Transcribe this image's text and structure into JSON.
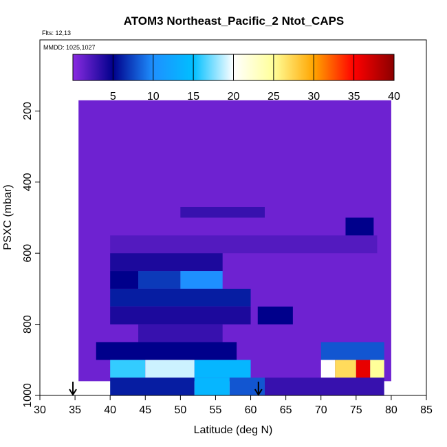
{
  "chart_data": {
    "type": "heatmap",
    "title": "ATOM3 Northeast_Pacific_2 Ntot_CAPS",
    "flights_note": "Flts: 12,13",
    "date_note": "MMDD: 1025,1027",
    "xlabel": "Latitude (deg N)",
    "ylabel": "PSXC (mbar)",
    "xlim": [
      30,
      85
    ],
    "ylim": [
      1000,
      0
    ],
    "x_ticks": [
      30,
      35,
      40,
      45,
      50,
      55,
      60,
      65,
      70,
      75,
      80,
      85
    ],
    "y_ticks": [
      200,
      400,
      600,
      800,
      1000
    ],
    "colorbar": {
      "range": [
        0,
        40
      ],
      "ticks": [
        5,
        10,
        15,
        20,
        25,
        30,
        35,
        40
      ],
      "colors": [
        "#8a2be2",
        "#00008b",
        "#1e90ff",
        "#00bfff",
        "#ffffff",
        "#ffff99",
        "#ffa500",
        "#ff0000",
        "#8b0000"
      ]
    },
    "background_value": 1,
    "bands": [
      {
        "p": [
          170,
          960
        ],
        "lat": [
          35.5,
          80.0
        ],
        "value": 1
      },
      {
        "p": [
          550,
          600
        ],
        "lat": [
          40.0,
          78.0
        ],
        "value": 2
      },
      {
        "p": [
          500,
          550
        ],
        "lat": [
          73.5,
          77.5
        ],
        "value": 5
      },
      {
        "p": [
          470,
          500
        ],
        "lat": [
          50.0,
          62.0
        ],
        "value": 3
      },
      {
        "p": [
          600,
          650
        ],
        "lat": [
          40.0,
          56.0
        ],
        "value": 4
      },
      {
        "p": [
          650,
          700
        ],
        "lat": [
          40.0,
          44.0
        ],
        "value": 5
      },
      {
        "p": [
          650,
          700
        ],
        "lat": [
          44.0,
          50.0
        ],
        "value": 7
      },
      {
        "p": [
          650,
          700
        ],
        "lat": [
          50.0,
          56.0
        ],
        "value": 10
      },
      {
        "p": [
          700,
          750
        ],
        "lat": [
          40.0,
          60.0
        ],
        "value": 6
      },
      {
        "p": [
          750,
          800
        ],
        "lat": [
          40.0,
          60.0
        ],
        "value": 4
      },
      {
        "p": [
          750,
          800
        ],
        "lat": [
          61.0,
          66.0
        ],
        "value": 5
      },
      {
        "p": [
          800,
          850
        ],
        "lat": [
          44.0,
          56.0
        ],
        "value": 3
      },
      {
        "p": [
          850,
          900
        ],
        "lat": [
          38.0,
          58.0
        ],
        "value": 5
      },
      {
        "p": [
          850,
          900
        ],
        "lat": [
          70.0,
          79.0
        ],
        "value": 8
      },
      {
        "p": [
          900,
          950
        ],
        "lat": [
          40.0,
          45.0
        ],
        "value": 16
      },
      {
        "p": [
          900,
          950
        ],
        "lat": [
          45.0,
          52.0
        ],
        "value": 19
      },
      {
        "p": [
          900,
          950
        ],
        "lat": [
          52.0,
          60.0
        ],
        "value": 14
      },
      {
        "p": [
          900,
          950
        ],
        "lat": [
          70.0,
          72.0
        ],
        "value": 20
      },
      {
        "p": [
          900,
          950
        ],
        "lat": [
          72.0,
          75.0
        ],
        "value": 27
      },
      {
        "p": [
          900,
          950
        ],
        "lat": [
          75.0,
          77.0
        ],
        "value": 36
      },
      {
        "p": [
          900,
          950
        ],
        "lat": [
          77.0,
          79.0
        ],
        "value": 25
      },
      {
        "p": [
          950,
          1000
        ],
        "lat": [
          40.0,
          52.0
        ],
        "value": 6
      },
      {
        "p": [
          950,
          1000
        ],
        "lat": [
          52.0,
          57.0
        ],
        "value": 14
      },
      {
        "p": [
          950,
          1000
        ],
        "lat": [
          57.0,
          62.0
        ],
        "value": 8
      },
      {
        "p": [
          950,
          1000
        ],
        "lat": [
          62.0,
          79.0
        ],
        "value": 3
      }
    ],
    "markers": [
      {
        "lat": 34.7,
        "p": 1000,
        "symbol": "arrow-down"
      },
      {
        "lat": 61.1,
        "p": 1000,
        "symbol": "arrow-down"
      }
    ]
  }
}
